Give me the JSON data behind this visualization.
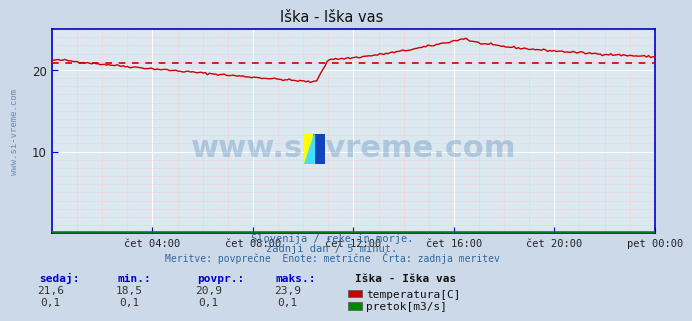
{
  "title": "Iška - Iška vas",
  "bg_color": "#ccd9e8",
  "plot_bg_color": "#dce8f0",
  "spine_color": "#0000cc",
  "grid_major_color": "#ffffff",
  "grid_minor_color": "#ffbbbb",
  "temp_color": "#cc0000",
  "flow_color": "#008800",
  "avg_line_color": "#cc0000",
  "avg_value": 20.9,
  "ylim": [
    0,
    25
  ],
  "yticks": [
    10,
    20
  ],
  "xtick_positions": [
    4,
    8,
    12,
    16,
    20,
    24
  ],
  "xlabel_ticks": [
    "čet 04:00",
    "čet 08:00",
    "čet 12:00",
    "čet 16:00",
    "čet 20:00",
    "pet 00:00"
  ],
  "subtitle1": "Slovenija / reke in morje.",
  "subtitle2": "zadnji dan / 5 minut.",
  "subtitle3": "Meritve: povprečne  Enote: metrične  Črta: zadnja meritev",
  "footer_headers": [
    "sedaj:",
    "min.:",
    "povpr.:",
    "maks.:"
  ],
  "footer_vals_temp": [
    "21,6",
    "18,5",
    "20,9",
    "23,9"
  ],
  "footer_vals_flow": [
    "0,1",
    "0,1",
    "0,1",
    "0,1"
  ],
  "legend_station": "Iška - Iška vas",
  "legend_temp": "temperatura[C]",
  "legend_flow": "pretok[m3/s]",
  "watermark": "www.si-vreme.com",
  "side_label": "www.si-vreme.com"
}
